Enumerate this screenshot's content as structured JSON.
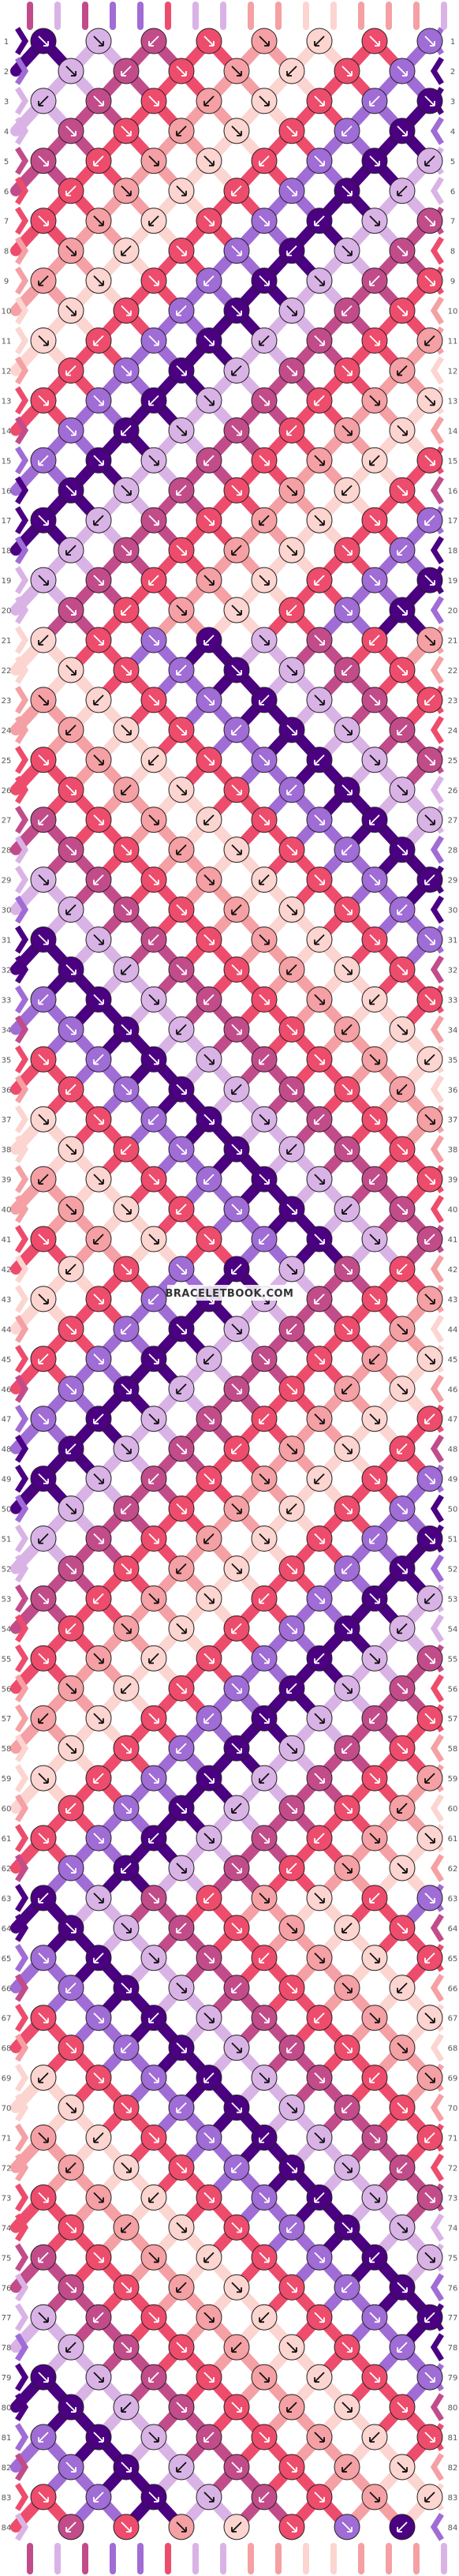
{
  "pattern": {
    "watermark": "BRACELETBOOK.COM",
    "row_count": 84,
    "knots_per_odd_row": 8,
    "knots_per_even_row": 7,
    "strand_count": 16,
    "colors": {
      "dark_purple": "#4b0082",
      "light_purple": "#a06cd5",
      "lavender": "#d9b3e6",
      "magenta": "#c24c8a",
      "coral_red": "#ee4c6c",
      "salmon": "#f5a0a4",
      "pale_pink": "#fcd4d0",
      "mauve_pink": "#d96aa0"
    },
    "strand_colors": [
      "magenta",
      "lavender",
      "magenta",
      "light_purple",
      "light_purple",
      "coral_red",
      "lavender",
      "lavender",
      "salmon",
      "salmon",
      "pale_pink",
      "pale_pink",
      "salmon",
      "salmon",
      "salmon",
      "lavender"
    ],
    "arrow_types": [
      "forward",
      "backward",
      "forward-backward",
      "backward-forward"
    ]
  }
}
